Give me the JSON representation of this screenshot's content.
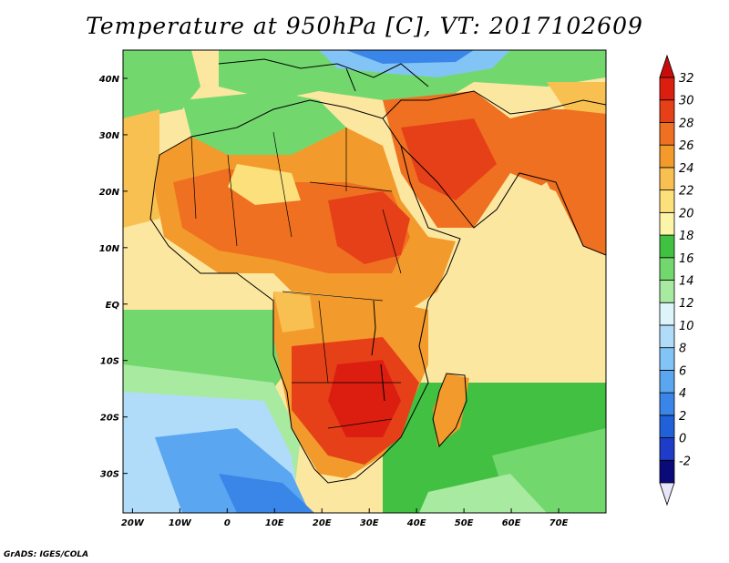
{
  "title": "Temperature at 950hPa [C], VT: 2017102609",
  "footer": "GrADS: IGES/COLA",
  "map": {
    "lon_range": [
      -22,
      80
    ],
    "lat_range": [
      -37,
      45
    ],
    "x_ticks": [
      {
        "lon": -20,
        "label": "20W"
      },
      {
        "lon": -10,
        "label": "10W"
      },
      {
        "lon": 0,
        "label": "0"
      },
      {
        "lon": 10,
        "label": "10E"
      },
      {
        "lon": 20,
        "label": "20E"
      },
      {
        "lon": 30,
        "label": "30E"
      },
      {
        "lon": 40,
        "label": "40E"
      },
      {
        "lon": 50,
        "label": "50E"
      },
      {
        "lon": 60,
        "label": "60E"
      },
      {
        "lon": 70,
        "label": "70E"
      }
    ],
    "y_ticks": [
      {
        "lat": 40,
        "label": "40N"
      },
      {
        "lat": 30,
        "label": "30N"
      },
      {
        "lat": 20,
        "label": "20N"
      },
      {
        "lat": 10,
        "label": "10N"
      },
      {
        "lat": 0,
        "label": "EQ"
      },
      {
        "lat": -10,
        "label": "10S"
      },
      {
        "lat": -20,
        "label": "20S"
      },
      {
        "lat": -30,
        "label": "30S"
      }
    ]
  },
  "colorbar": {
    "levels": [
      -2,
      0,
      2,
      4,
      6,
      8,
      10,
      12,
      14,
      16,
      18,
      20,
      22,
      24,
      26,
      28,
      30,
      32
    ],
    "colors": [
      "#0a0a7a",
      "#1e3cc8",
      "#2060d8",
      "#3a86e8",
      "#5aa6f0",
      "#82c4f6",
      "#b0dcfa",
      "#dcf4fa",
      "#a8eaa0",
      "#72d86e",
      "#42c042",
      "#fcf4a6",
      "#fce07c",
      "#f8c050",
      "#f39a2c",
      "#ef7020",
      "#e64018",
      "#dc1e10"
    ]
  }
}
